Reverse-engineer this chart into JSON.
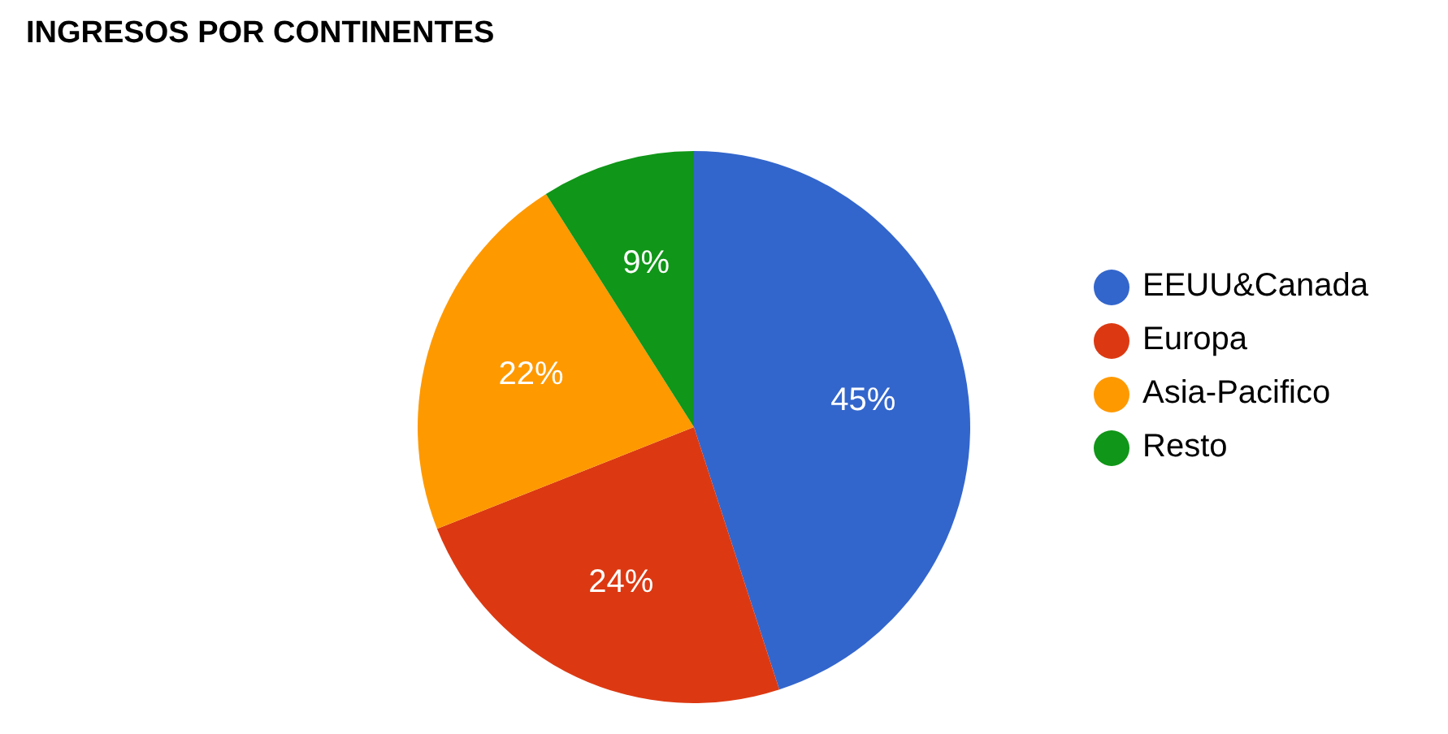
{
  "chart_data": {
    "type": "pie",
    "title": "INGRESOS POR CONTINENTES",
    "categories": [
      "EEUU&Canada",
      "Europa",
      "Asia-Pacifico",
      "Resto"
    ],
    "values": [
      45,
      24,
      22,
      9
    ],
    "colors": [
      "#3366cc",
      "#dc3912",
      "#ff9900",
      "#109618"
    ],
    "value_labels": [
      "45%",
      "24%",
      "22%",
      "9%"
    ],
    "legend": "right"
  }
}
